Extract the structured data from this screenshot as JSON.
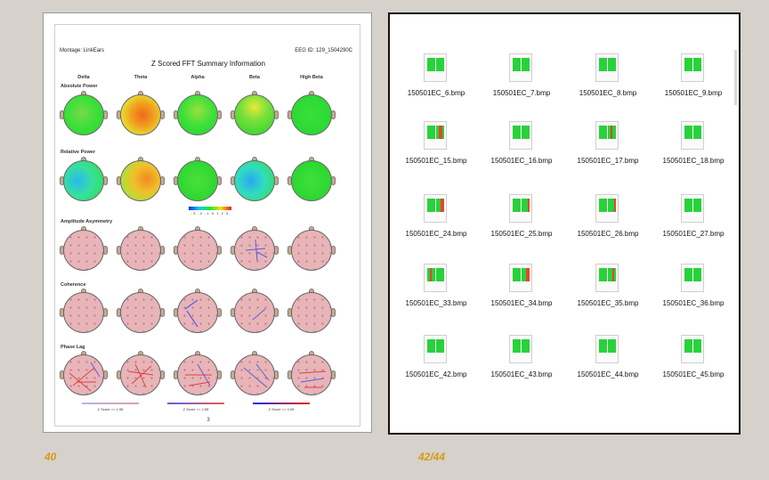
{
  "left_doc": {
    "montage": "Montage:  LinkEars",
    "eeg_id": "EEG ID:   129_1504290C",
    "title": "Z Scored FFT Summary Information",
    "columns": [
      "Delta",
      "Theta",
      "Alpha",
      "Beta",
      "High Beta"
    ],
    "rows": [
      "Absolute Power",
      "Relative Power",
      "Amplitude Asymmetry",
      "Coherence",
      "Phase Lag"
    ],
    "colorbar_ticks": "-3 -2 -1  0  1  2  3",
    "zscore_labels": [
      "Z Score >= 1.96",
      "Z Score >= 2.58",
      "Z Score >= 3.09"
    ],
    "page_number": "3"
  },
  "folder": {
    "files": [
      "150501EC_6.bmp",
      "150501EC_7.bmp",
      "150501EC_8.bmp",
      "150501EC_9.bmp",
      "150501EC_15.bmp",
      "150501EC_16.bmp",
      "150501EC_17.bmp",
      "150501EC_18.bmp",
      "150501EC_24.bmp",
      "150501EC_25.bmp",
      "150501EC_26.bmp",
      "150501EC_27.bmp",
      "150501EC_33.bmp",
      "150501EC_34.bmp",
      "150501EC_35.bmp",
      "150501EC_36.bmp",
      "150501EC_42.bmp",
      "150501EC_43.bmp",
      "150501EC_44.bmp",
      "150501EC_45.bmp"
    ]
  },
  "captions": {
    "left": "40",
    "right": "42/44"
  }
}
